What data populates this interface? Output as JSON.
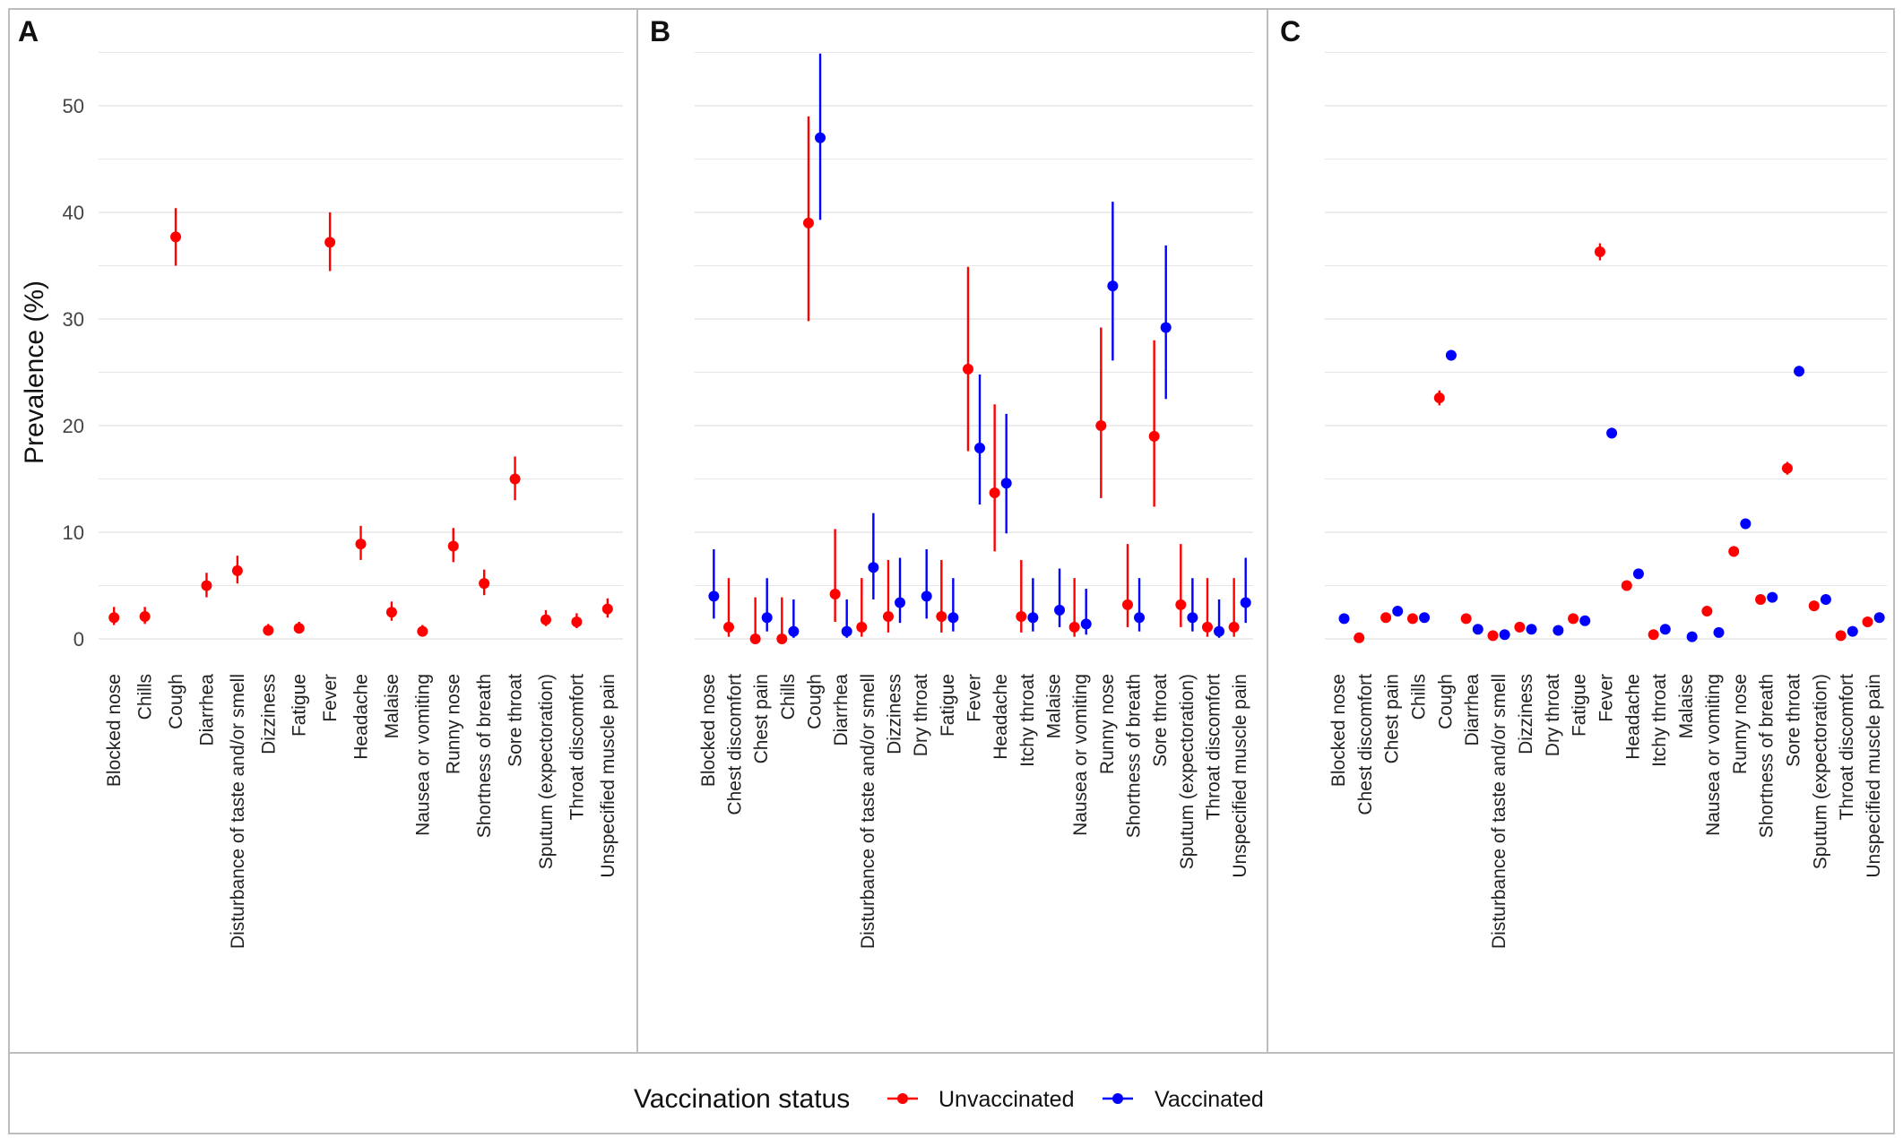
{
  "colors": {
    "Unvaccinated": "#ff0000",
    "Vaccinated": "#0000ff",
    "grid": "#e6e6e6",
    "border": "#bdbdbd"
  },
  "legend": {
    "title": "Vaccination status",
    "items": [
      "Unvaccinated",
      "Vaccinated"
    ]
  },
  "chart_data": [
    {
      "panel": "A",
      "type": "scatter",
      "ylabel": "Prevalence (%)",
      "ylim": [
        -1,
        55
      ],
      "yticks": [
        0,
        10,
        20,
        30,
        40,
        50
      ],
      "grid": true,
      "categories": [
        "Blocked nose",
        "Chills",
        "Cough",
        "Diarrhea",
        "Disturbance of taste and/or smell",
        "Dizziness",
        "Fatigue",
        "Fever",
        "Headache",
        "Malaise",
        "Nausea or vomiting",
        "Runny nose",
        "Shortness of breath",
        "Sore throat",
        "Sputum (expectoration)",
        "Throat discomfort",
        "Unspecified muscle pain"
      ],
      "series": [
        {
          "name": "Unvaccinated",
          "points": [
            {
              "cat": "Blocked nose",
              "y": 2.0,
              "lo": 1.3,
              "hi": 3.0
            },
            {
              "cat": "Chills",
              "y": 2.1,
              "lo": 1.4,
              "hi": 3.0
            },
            {
              "cat": "Cough",
              "y": 37.7,
              "lo": 35.0,
              "hi": 40.4
            },
            {
              "cat": "Diarrhea",
              "y": 5.0,
              "lo": 3.9,
              "hi": 6.2
            },
            {
              "cat": "Disturbance of taste and/or smell",
              "y": 6.4,
              "lo": 5.2,
              "hi": 7.8
            },
            {
              "cat": "Dizziness",
              "y": 0.8,
              "lo": 0.4,
              "hi": 1.4
            },
            {
              "cat": "Fatigue",
              "y": 1.0,
              "lo": 0.5,
              "hi": 1.6
            },
            {
              "cat": "Fever",
              "y": 37.2,
              "lo": 34.5,
              "hi": 40.0
            },
            {
              "cat": "Headache",
              "y": 8.9,
              "lo": 7.4,
              "hi": 10.6
            },
            {
              "cat": "Malaise",
              "y": 2.5,
              "lo": 1.7,
              "hi": 3.5
            },
            {
              "cat": "Nausea or vomiting",
              "y": 0.7,
              "lo": 0.3,
              "hi": 1.3
            },
            {
              "cat": "Runny nose",
              "y": 8.7,
              "lo": 7.2,
              "hi": 10.4
            },
            {
              "cat": "Shortness of breath",
              "y": 5.2,
              "lo": 4.1,
              "hi": 6.5
            },
            {
              "cat": "Sore throat",
              "y": 15.0,
              "lo": 13.0,
              "hi": 17.1
            },
            {
              "cat": "Sputum (expectoration)",
              "y": 1.8,
              "lo": 1.2,
              "hi": 2.7
            },
            {
              "cat": "Throat discomfort",
              "y": 1.6,
              "lo": 1.0,
              "hi": 2.4
            },
            {
              "cat": "Unspecified muscle pain",
              "y": 2.8,
              "lo": 2.0,
              "hi": 3.8
            }
          ]
        }
      ]
    },
    {
      "panel": "B",
      "type": "scatter",
      "ylim": [
        -1,
        55
      ],
      "grid": true,
      "categories": [
        "Blocked nose",
        "Chest discomfort",
        "Chest pain",
        "Chills",
        "Cough",
        "Diarrhea",
        "Disturbance of taste and/or smell",
        "Dizziness",
        "Dry throat",
        "Fatigue",
        "Fever",
        "Headache",
        "Itchy throat",
        "Malaise",
        "Nausea or vomiting",
        "Runny nose",
        "Shortness of breath",
        "Sore throat",
        "Sputum (expectoration)",
        "Throat discomfort",
        "Unspecified muscle pain"
      ],
      "series": [
        {
          "name": "Unvaccinated",
          "points": [
            {
              "cat": "Chest discomfort",
              "y": 1.1,
              "lo": 0.2,
              "hi": 5.7
            },
            {
              "cat": "Chest pain",
              "y": 0.0,
              "lo": 0.0,
              "hi": 3.9
            },
            {
              "cat": "Chills",
              "y": 0.0,
              "lo": 0.0,
              "hi": 3.9
            },
            {
              "cat": "Cough",
              "y": 39.0,
              "lo": 29.8,
              "hi": 49.0
            },
            {
              "cat": "Diarrhea",
              "y": 4.2,
              "lo": 1.6,
              "hi": 10.3
            },
            {
              "cat": "Disturbance of taste and/or smell",
              "y": 1.1,
              "lo": 0.2,
              "hi": 5.7
            },
            {
              "cat": "Dizziness",
              "y": 2.1,
              "lo": 0.6,
              "hi": 7.4
            },
            {
              "cat": "Fatigue",
              "y": 2.1,
              "lo": 0.6,
              "hi": 7.4
            },
            {
              "cat": "Fever",
              "y": 25.3,
              "lo": 17.6,
              "hi": 34.9
            },
            {
              "cat": "Headache",
              "y": 13.7,
              "lo": 8.2,
              "hi": 22.0
            },
            {
              "cat": "Itchy throat",
              "y": 2.1,
              "lo": 0.6,
              "hi": 7.4
            },
            {
              "cat": "Nausea or vomiting",
              "y": 1.1,
              "lo": 0.2,
              "hi": 5.7
            },
            {
              "cat": "Runny nose",
              "y": 20.0,
              "lo": 13.2,
              "hi": 29.2
            },
            {
              "cat": "Shortness of breath",
              "y": 3.2,
              "lo": 1.1,
              "hi": 8.9
            },
            {
              "cat": "Sore throat",
              "y": 19.0,
              "lo": 12.4,
              "hi": 28.0
            },
            {
              "cat": "Sputum (expectoration)",
              "y": 3.2,
              "lo": 1.1,
              "hi": 8.9
            },
            {
              "cat": "Throat discomfort",
              "y": 1.1,
              "lo": 0.2,
              "hi": 5.7
            },
            {
              "cat": "Unspecified muscle pain",
              "y": 1.1,
              "lo": 0.2,
              "hi": 5.7
            }
          ]
        },
        {
          "name": "Vaccinated",
          "points": [
            {
              "cat": "Blocked nose",
              "y": 4.0,
              "lo": 1.9,
              "hi": 8.4
            },
            {
              "cat": "Chest pain",
              "y": 2.0,
              "lo": 0.7,
              "hi": 5.7
            },
            {
              "cat": "Chills",
              "y": 0.7,
              "lo": 0.1,
              "hi": 3.7
            },
            {
              "cat": "Cough",
              "y": 47.0,
              "lo": 39.3,
              "hi": 54.9
            },
            {
              "cat": "Diarrhea",
              "y": 0.7,
              "lo": 0.1,
              "hi": 3.7
            },
            {
              "cat": "Disturbance of taste and/or smell",
              "y": 6.7,
              "lo": 3.7,
              "hi": 11.8
            },
            {
              "cat": "Dizziness",
              "y": 3.4,
              "lo": 1.5,
              "hi": 7.6
            },
            {
              "cat": "Dry throat",
              "y": 4.0,
              "lo": 1.9,
              "hi": 8.4
            },
            {
              "cat": "Fatigue",
              "y": 2.0,
              "lo": 0.7,
              "hi": 5.7
            },
            {
              "cat": "Fever",
              "y": 17.9,
              "lo": 12.6,
              "hi": 24.8
            },
            {
              "cat": "Headache",
              "y": 14.6,
              "lo": 9.9,
              "hi": 21.1
            },
            {
              "cat": "Itchy throat",
              "y": 2.0,
              "lo": 0.7,
              "hi": 5.7
            },
            {
              "cat": "Malaise",
              "y": 2.7,
              "lo": 1.1,
              "hi": 6.6
            },
            {
              "cat": "Nausea or vomiting",
              "y": 1.4,
              "lo": 0.4,
              "hi": 4.7
            },
            {
              "cat": "Runny nose",
              "y": 33.1,
              "lo": 26.1,
              "hi": 41.0
            },
            {
              "cat": "Shortness of breath",
              "y": 2.0,
              "lo": 0.7,
              "hi": 5.7
            },
            {
              "cat": "Sore throat",
              "y": 29.2,
              "lo": 22.5,
              "hi": 36.9
            },
            {
              "cat": "Sputum (expectoration)",
              "y": 2.0,
              "lo": 0.7,
              "hi": 5.7
            },
            {
              "cat": "Throat discomfort",
              "y": 0.7,
              "lo": 0.1,
              "hi": 3.7
            },
            {
              "cat": "Unspecified muscle pain",
              "y": 3.4,
              "lo": 1.5,
              "hi": 7.6
            }
          ]
        }
      ]
    },
    {
      "panel": "C",
      "type": "scatter",
      "ylim": [
        -1,
        55
      ],
      "grid": true,
      "categories": [
        "Blocked nose",
        "Chest discomfort",
        "Chest pain",
        "Chills",
        "Cough",
        "Diarrhea",
        "Disturbance of taste and/or smell",
        "Dizziness",
        "Dry throat",
        "Fatigue",
        "Fever",
        "Headache",
        "Itchy throat",
        "Malaise",
        "Nausea or vomiting",
        "Runny nose",
        "Shortness of breath",
        "Sore throat",
        "Sputum (expectoration)",
        "Throat discomfort",
        "Unspecified muscle pain"
      ],
      "series": [
        {
          "name": "Unvaccinated",
          "points": [
            {
              "cat": "Chest discomfort",
              "y": 0.1,
              "lo": 0.0,
              "hi": 0.3
            },
            {
              "cat": "Chest pain",
              "y": 2.0,
              "lo": 1.7,
              "hi": 2.3
            },
            {
              "cat": "Chills",
              "y": 1.9,
              "lo": 1.6,
              "hi": 2.2
            },
            {
              "cat": "Cough",
              "y": 22.6,
              "lo": 21.9,
              "hi": 23.3
            },
            {
              "cat": "Diarrhea",
              "y": 1.9,
              "lo": 1.6,
              "hi": 2.2
            },
            {
              "cat": "Disturbance of taste and/or smell",
              "y": 0.3,
              "lo": 0.2,
              "hi": 0.5
            },
            {
              "cat": "Dizziness",
              "y": 1.1,
              "lo": 0.9,
              "hi": 1.4
            },
            {
              "cat": "Fatigue",
              "y": 1.9,
              "lo": 1.6,
              "hi": 2.2
            },
            {
              "cat": "Fever",
              "y": 36.3,
              "lo": 35.5,
              "hi": 37.1
            },
            {
              "cat": "Headache",
              "y": 5.0,
              "lo": 4.6,
              "hi": 5.4
            },
            {
              "cat": "Itchy throat",
              "y": 0.4,
              "lo": 0.3,
              "hi": 0.6
            },
            {
              "cat": "Nausea or vomiting",
              "y": 2.6,
              "lo": 2.3,
              "hi": 2.9
            },
            {
              "cat": "Runny nose",
              "y": 8.2,
              "lo": 7.7,
              "hi": 8.7
            },
            {
              "cat": "Shortness of breath",
              "y": 3.7,
              "lo": 3.3,
              "hi": 4.1
            },
            {
              "cat": "Sore throat",
              "y": 16.0,
              "lo": 15.4,
              "hi": 16.6
            },
            {
              "cat": "Sputum (expectoration)",
              "y": 3.1,
              "lo": 2.8,
              "hi": 3.4
            },
            {
              "cat": "Throat discomfort",
              "y": 0.3,
              "lo": 0.2,
              "hi": 0.5
            },
            {
              "cat": "Unspecified muscle pain",
              "y": 1.6,
              "lo": 1.3,
              "hi": 1.9
            }
          ]
        },
        {
          "name": "Vaccinated",
          "points": [
            {
              "cat": "Blocked nose",
              "y": 1.9,
              "lo": 1.7,
              "hi": 2.1
            },
            {
              "cat": "Chest pain",
              "y": 2.6,
              "lo": 2.4,
              "hi": 2.8
            },
            {
              "cat": "Chills",
              "y": 2.0,
              "lo": 1.8,
              "hi": 2.2
            },
            {
              "cat": "Cough",
              "y": 26.6,
              "lo": 26.1,
              "hi": 27.1
            },
            {
              "cat": "Diarrhea",
              "y": 0.9,
              "lo": 0.8,
              "hi": 1.0
            },
            {
              "cat": "Disturbance of taste and/or smell",
              "y": 0.4,
              "lo": 0.3,
              "hi": 0.5
            },
            {
              "cat": "Dizziness",
              "y": 0.9,
              "lo": 0.8,
              "hi": 1.0
            },
            {
              "cat": "Dry throat",
              "y": 0.8,
              "lo": 0.7,
              "hi": 0.9
            },
            {
              "cat": "Fatigue",
              "y": 1.7,
              "lo": 1.5,
              "hi": 1.9
            },
            {
              "cat": "Fever",
              "y": 19.3,
              "lo": 18.8,
              "hi": 19.8
            },
            {
              "cat": "Headache",
              "y": 6.1,
              "lo": 5.8,
              "hi": 6.4
            },
            {
              "cat": "Itchy throat",
              "y": 0.9,
              "lo": 0.8,
              "hi": 1.0
            },
            {
              "cat": "Malaise",
              "y": 0.2,
              "lo": 0.1,
              "hi": 0.3
            },
            {
              "cat": "Nausea or vomiting",
              "y": 0.6,
              "lo": 0.5,
              "hi": 0.7
            },
            {
              "cat": "Runny nose",
              "y": 10.8,
              "lo": 10.4,
              "hi": 11.2
            },
            {
              "cat": "Shortness of breath",
              "y": 3.9,
              "lo": 3.7,
              "hi": 4.1
            },
            {
              "cat": "Sore throat",
              "y": 25.1,
              "lo": 24.6,
              "hi": 25.6
            },
            {
              "cat": "Sputum (expectoration)",
              "y": 3.7,
              "lo": 3.5,
              "hi": 3.9
            },
            {
              "cat": "Throat discomfort",
              "y": 0.7,
              "lo": 0.6,
              "hi": 0.8
            },
            {
              "cat": "Unspecified muscle pain",
              "y": 2.0,
              "lo": 1.8,
              "hi": 2.2
            }
          ]
        }
      ]
    }
  ]
}
